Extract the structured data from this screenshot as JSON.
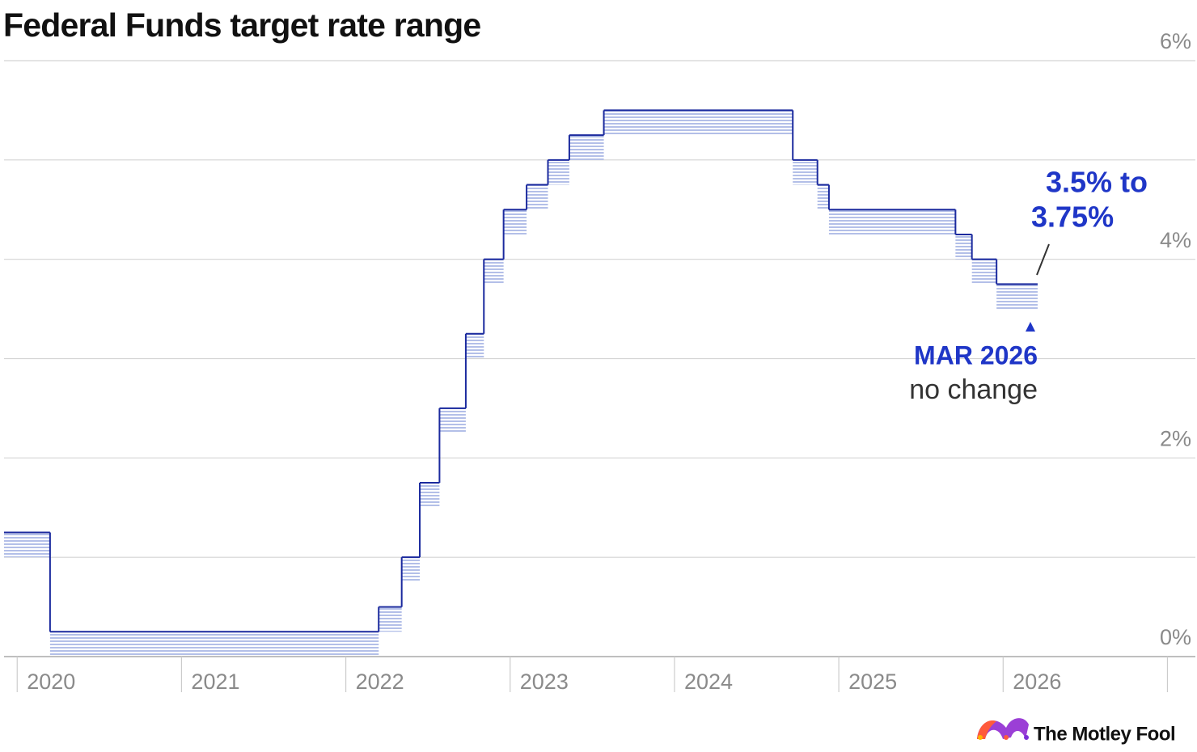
{
  "chart_data": {
    "type": "step-band",
    "title": "Federal Funds target rate range",
    "x": [
      2019.92,
      2020.2,
      2022.2,
      2022.34,
      2022.45,
      2022.57,
      2022.73,
      2022.84,
      2022.96,
      2023.1,
      2023.23,
      2023.36,
      2023.57,
      2024.72,
      2024.87,
      2024.94,
      2025.71,
      2025.81,
      2025.96,
      2026.21
    ],
    "upper": [
      1.25,
      0.25,
      0.5,
      1.0,
      1.75,
      2.5,
      3.25,
      4.0,
      4.5,
      4.75,
      5.0,
      5.25,
      5.5,
      5.0,
      4.75,
      4.5,
      4.25,
      4.0,
      3.75,
      3.75
    ],
    "lower": [
      1.0,
      0,
      0.25,
      0.75,
      1.5,
      2.25,
      3.0,
      3.75,
      4.25,
      4.5,
      4.75,
      5.0,
      5.25,
      4.75,
      4.5,
      4.25,
      4.0,
      3.75,
      3.5,
      3.5
    ],
    "line_color": "#1b2a9e",
    "band_color": "#b3bfe8",
    "xlim": [
      2019.92,
      2027.17
    ],
    "xticks": [
      2020,
      2021,
      2022,
      2023,
      2024,
      2025,
      2026
    ],
    "minor_xticks": [
      2027
    ],
    "ylim": [
      0,
      6
    ],
    "yticks": [
      {
        "value": 0,
        "label": "0%"
      },
      {
        "value": 2,
        "label": "2%"
      },
      {
        "value": 4,
        "label": "4%"
      },
      {
        "value": 6,
        "label": "6%"
      }
    ],
    "minor_yticks": [
      1,
      3,
      5
    ],
    "grid": true,
    "annotations": {
      "range_line1": "3.5% to",
      "range_line2": "3.75%",
      "date": "MAR 2026",
      "note": "no change"
    }
  },
  "footer": {
    "logo": "The Motley Fool"
  }
}
